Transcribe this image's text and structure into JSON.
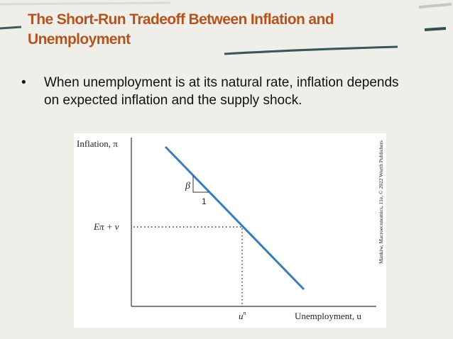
{
  "header": {
    "title_lines": [
      "The Short-Run Tradeoff Between Inflation and",
      "Unemployment"
    ]
  },
  "bullets": [
    "When unemployment is at its natural rate, inflation depends on expected inflation and the supply shock."
  ],
  "figure": {
    "y_axis_label": "Inflation, π",
    "level_label": "Eπ + v",
    "slope_label": "β",
    "run_label": "1",
    "natural_rate_label": "u",
    "natural_rate_sup": "n",
    "x_axis_label": "Unemployment, u",
    "credit": "Mankiw, Macroeconomics, 11e, © 2022 Worth Publishers"
  }
}
